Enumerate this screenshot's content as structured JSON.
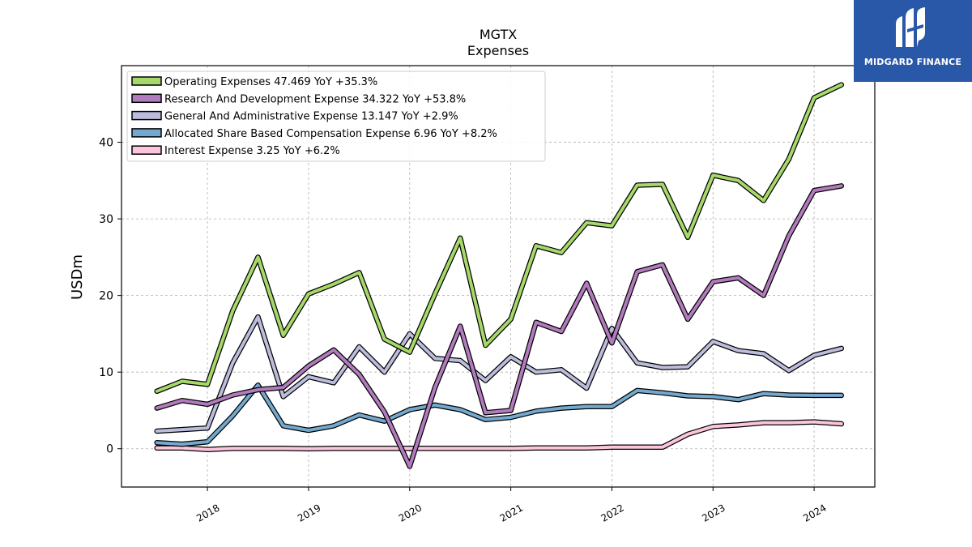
{
  "brand": {
    "name": "MIDGARD FINANCE",
    "bg_color": "#2a58a8"
  },
  "chart_data": {
    "type": "line",
    "title": "MGTX",
    "subtitle": "Expenses",
    "ylabel": "USDm",
    "xlabel": "",
    "ylim": [
      -5,
      50
    ],
    "xlim": [
      2017.15,
      2024.6
    ],
    "yticks": [
      0,
      10,
      20,
      30,
      40
    ],
    "xticks": [
      2018,
      2019,
      2020,
      2021,
      2022,
      2023,
      2024
    ],
    "xtick_labels": [
      "2018",
      "2019",
      "2020",
      "2021",
      "2022",
      "2023",
      "2024"
    ],
    "grid": true,
    "legend_position": "top-left",
    "x": [
      2017.5,
      2017.75,
      2018.0,
      2018.25,
      2018.5,
      2018.75,
      2019.0,
      2019.25,
      2019.5,
      2019.75,
      2020.0,
      2020.25,
      2020.5,
      2020.75,
      2021.0,
      2021.25,
      2021.5,
      2021.75,
      2022.0,
      2022.25,
      2022.5,
      2022.75,
      2023.0,
      2023.25,
      2023.5,
      2023.75,
      2024.0,
      2024.27
    ],
    "series": [
      {
        "name": "Operating Expenses",
        "legend_label": "Operating Expenses  47.469 YoY +35.3%",
        "color": "#a6d96a",
        "values": [
          7.5,
          8.8,
          8.4,
          18.0,
          25.0,
          14.8,
          20.2,
          21.5,
          23.0,
          14.3,
          12.6,
          20.2,
          27.5,
          13.5,
          16.9,
          26.5,
          25.6,
          29.5,
          29.1,
          34.4,
          34.5,
          27.6,
          35.7,
          35.0,
          32.4,
          37.8,
          45.8,
          47.5
        ]
      },
      {
        "name": "Research And Development Expense",
        "legend_label": "Research And Development Expense  34.322 YoY +53.8%",
        "color": "#b27bbd",
        "values": [
          5.3,
          6.3,
          5.8,
          7.0,
          7.7,
          8.0,
          10.8,
          12.9,
          9.7,
          4.8,
          -2.3,
          8.0,
          16.0,
          4.7,
          5.0,
          16.5,
          15.3,
          21.6,
          13.8,
          23.1,
          24.0,
          16.9,
          21.8,
          22.3,
          20.0,
          27.8,
          33.7,
          34.3
        ]
      },
      {
        "name": "General And Administrative Expense",
        "legend_label": "General And Administrative Expense  13.147 YoY +2.9%",
        "color": "#bcbddc",
        "values": [
          2.3,
          2.5,
          2.7,
          11.2,
          17.2,
          6.8,
          9.4,
          8.6,
          13.3,
          10.0,
          15.0,
          11.8,
          11.5,
          8.9,
          12.0,
          10.0,
          10.3,
          7.9,
          15.7,
          11.2,
          10.6,
          10.7,
          14.0,
          12.8,
          12.4,
          10.2,
          12.2,
          13.1
        ]
      },
      {
        "name": "Allocated Share Based Compensation Expense",
        "legend_label": "Allocated Share Based Compensation Expense  6.96 YoY +8.2%",
        "color": "#74a9cf",
        "values": [
          0.8,
          0.6,
          0.9,
          4.3,
          8.3,
          3.0,
          2.4,
          3.0,
          4.4,
          3.6,
          5.1,
          5.7,
          5.1,
          3.8,
          4.1,
          4.9,
          5.3,
          5.5,
          5.5,
          7.6,
          7.3,
          6.9,
          6.8,
          6.4,
          7.2,
          7.0,
          6.96,
          6.96
        ]
      },
      {
        "name": "Interest Expense",
        "legend_label": "Interest Expense  3.25 YoY +6.2%",
        "color": "#fcc5dd",
        "values": [
          0.1,
          0.1,
          -0.1,
          0.05,
          0.05,
          0.05,
          0.0,
          0.05,
          0.05,
          0.05,
          0.05,
          0.05,
          0.05,
          0.05,
          0.05,
          0.1,
          0.1,
          0.1,
          0.2,
          0.2,
          0.2,
          1.9,
          2.9,
          3.1,
          3.4,
          3.4,
          3.5,
          3.25
        ]
      }
    ]
  }
}
